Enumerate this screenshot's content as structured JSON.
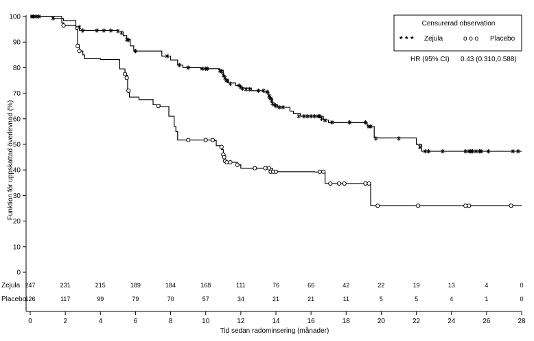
{
  "chart_data": {
    "type": "line",
    "subtype": "kaplan-meier",
    "xlabel": "Tid sedan radominsering (månader)",
    "ylabel": "Funktion för uppskattad överlevnad (%)",
    "xlim": [
      0,
      28
    ],
    "ylim": [
      0,
      100
    ],
    "x_ticks": [
      "0",
      "2",
      "4",
      "6",
      "8",
      "10",
      "12",
      "14",
      "16",
      "18",
      "20",
      "22",
      "24",
      "26",
      "28"
    ],
    "y_ticks": [
      "0",
      "10",
      "20",
      "30",
      "40",
      "50",
      "60",
      "70",
      "80",
      "90",
      "100"
    ],
    "legend": {
      "title": "Censurerad observation",
      "position": "top-right",
      "entries": [
        {
          "label": "Zejula",
          "symbol": "* * *"
        },
        {
          "label": "Placebo",
          "symbol": "o o o"
        }
      ]
    },
    "annotation": {
      "label": "HR (95% CI)",
      "value": "0.43 (0.310,0.588)"
    },
    "series": [
      {
        "name": "Zejula",
        "marker": "asterisk",
        "steps": [
          [
            0,
            100
          ],
          [
            1.3,
            99.2
          ],
          [
            1.9,
            98.4
          ],
          [
            2.6,
            96
          ],
          [
            2.8,
            94.5
          ],
          [
            5.0,
            94
          ],
          [
            5.3,
            92.5
          ],
          [
            5.5,
            91
          ],
          [
            5.7,
            88.5
          ],
          [
            5.9,
            86.5
          ],
          [
            7.5,
            84.5
          ],
          [
            8.0,
            83
          ],
          [
            8.4,
            81
          ],
          [
            8.7,
            80
          ],
          [
            9.7,
            79.6
          ],
          [
            10.8,
            79
          ],
          [
            11.0,
            77
          ],
          [
            11.1,
            75
          ],
          [
            11.3,
            74
          ],
          [
            11.7,
            73
          ],
          [
            12.0,
            72
          ],
          [
            12.6,
            71
          ],
          [
            13.3,
            70.5
          ],
          [
            13.6,
            68
          ],
          [
            13.8,
            65.5
          ],
          [
            14.1,
            64.5
          ],
          [
            14.8,
            63
          ],
          [
            15.0,
            62
          ],
          [
            15.4,
            61
          ],
          [
            16.7,
            59.5
          ],
          [
            17.0,
            58.5
          ],
          [
            19.2,
            57
          ],
          [
            19.6,
            52.5
          ],
          [
            22.0,
            50
          ],
          [
            22.3,
            47.3
          ],
          [
            28,
            47.3
          ]
        ],
        "censored": [
          [
            0.1,
            100
          ],
          [
            0.2,
            100
          ],
          [
            0.35,
            100
          ],
          [
            0.5,
            100
          ],
          [
            1.3,
            99.3
          ],
          [
            2.8,
            95.8
          ],
          [
            3.0,
            94.5
          ],
          [
            3.8,
            94.5
          ],
          [
            4.2,
            94.5
          ],
          [
            4.6,
            94.5
          ],
          [
            5.0,
            94.3
          ],
          [
            5.2,
            93.6
          ],
          [
            5.5,
            91
          ],
          [
            5.6,
            90.8
          ],
          [
            6.0,
            86.5
          ],
          [
            7.8,
            84.5
          ],
          [
            8.5,
            81
          ],
          [
            9.0,
            80
          ],
          [
            9.8,
            79.6
          ],
          [
            10.0,
            79.6
          ],
          [
            10.1,
            79.6
          ],
          [
            10.8,
            78.8
          ],
          [
            10.9,
            78.5
          ],
          [
            11.0,
            77
          ],
          [
            11.1,
            76
          ],
          [
            11.2,
            75
          ],
          [
            11.25,
            74.8
          ],
          [
            11.4,
            73.7
          ],
          [
            11.9,
            73
          ],
          [
            12.0,
            72.4
          ],
          [
            12.1,
            71.8
          ],
          [
            12.3,
            71.5
          ],
          [
            12.5,
            71.5
          ],
          [
            13.0,
            71
          ],
          [
            13.3,
            71
          ],
          [
            13.5,
            70.5
          ],
          [
            13.6,
            69
          ],
          [
            13.65,
            68.5
          ],
          [
            13.7,
            68
          ],
          [
            13.75,
            67
          ],
          [
            13.8,
            66
          ],
          [
            13.9,
            65.5
          ],
          [
            14.0,
            65
          ],
          [
            14.2,
            64.5
          ],
          [
            14.4,
            64.5
          ],
          [
            15.3,
            61
          ],
          [
            15.6,
            61
          ],
          [
            15.8,
            61
          ],
          [
            16.0,
            61
          ],
          [
            16.2,
            61
          ],
          [
            16.4,
            61
          ],
          [
            16.5,
            61
          ],
          [
            16.6,
            60
          ],
          [
            16.8,
            59.4
          ],
          [
            17.2,
            58.6
          ],
          [
            18.2,
            58.6
          ],
          [
            19.1,
            58.6
          ],
          [
            19.3,
            57
          ],
          [
            19.4,
            57
          ],
          [
            19.7,
            52.3
          ],
          [
            21.0,
            52.3
          ],
          [
            22.2,
            49
          ],
          [
            22.5,
            47.3
          ],
          [
            22.7,
            47.3
          ],
          [
            23.5,
            47.3
          ],
          [
            24.8,
            47.3
          ],
          [
            25.0,
            47.3
          ],
          [
            25.1,
            47.3
          ],
          [
            25.2,
            47.3
          ],
          [
            25.4,
            47.3
          ],
          [
            25.6,
            47.3
          ],
          [
            25.7,
            47.3
          ],
          [
            26.1,
            47.3
          ],
          [
            27.5,
            47.3
          ],
          [
            27.8,
            47.3
          ]
        ]
      },
      {
        "name": "Placebo",
        "marker": "circle",
        "steps": [
          [
            0,
            100
          ],
          [
            1.8,
            97.5
          ],
          [
            1.9,
            96.5
          ],
          [
            2.6,
            95
          ],
          [
            2.7,
            89
          ],
          [
            2.8,
            86.5
          ],
          [
            3.0,
            85
          ],
          [
            3.1,
            83.5
          ],
          [
            4.0,
            83.2
          ],
          [
            5.1,
            79.5
          ],
          [
            5.4,
            77
          ],
          [
            5.55,
            71
          ],
          [
            5.65,
            68.5
          ],
          [
            6.2,
            67.5
          ],
          [
            7.0,
            65.5
          ],
          [
            7.4,
            64.8
          ],
          [
            7.9,
            61
          ],
          [
            8.2,
            57
          ],
          [
            8.3,
            55
          ],
          [
            8.4,
            51.7
          ],
          [
            10.3,
            51.5
          ],
          [
            10.6,
            49.5
          ],
          [
            10.9,
            48
          ],
          [
            11.0,
            46
          ],
          [
            11.1,
            43
          ],
          [
            11.8,
            42
          ],
          [
            12.0,
            40.7
          ],
          [
            13.8,
            39.3
          ],
          [
            16.2,
            39.2
          ],
          [
            16.8,
            34.7
          ],
          [
            19.4,
            26
          ],
          [
            28,
            26
          ]
        ],
        "censored": [
          [
            1.9,
            96.5
          ],
          [
            2.7,
            88.5
          ],
          [
            2.8,
            86.5
          ],
          [
            5.4,
            77.5
          ],
          [
            5.5,
            76
          ],
          [
            5.6,
            71
          ],
          [
            7.3,
            65
          ],
          [
            9.0,
            51.7
          ],
          [
            10.0,
            51.7
          ],
          [
            10.4,
            51.7
          ],
          [
            10.9,
            49
          ],
          [
            11.0,
            46
          ],
          [
            11.05,
            45
          ],
          [
            11.1,
            43.5
          ],
          [
            11.2,
            43
          ],
          [
            11.4,
            43
          ],
          [
            11.8,
            42
          ],
          [
            12.8,
            40.7
          ],
          [
            13.4,
            40.7
          ],
          [
            13.6,
            40.7
          ],
          [
            13.7,
            39.3
          ],
          [
            13.85,
            39.3
          ],
          [
            14.0,
            39.3
          ],
          [
            16.5,
            39.3
          ],
          [
            16.7,
            39.3
          ],
          [
            17.1,
            34.7
          ],
          [
            17.6,
            34.7
          ],
          [
            17.9,
            34.7
          ],
          [
            19.1,
            34.7
          ],
          [
            19.3,
            34.7
          ],
          [
            19.8,
            26
          ],
          [
            22.1,
            26
          ],
          [
            24.8,
            26
          ],
          [
            25.0,
            26
          ],
          [
            27.4,
            26
          ]
        ]
      }
    ],
    "at_risk": {
      "times": [
        0,
        2,
        4,
        6,
        8,
        10,
        12,
        14,
        16,
        18,
        20,
        22,
        24,
        26,
        28
      ],
      "rows": [
        {
          "label": "Zejula",
          "values": [
            "247",
            "231",
            "215",
            "189",
            "184",
            "168",
            "111",
            "76",
            "66",
            "42",
            "22",
            "19",
            "13",
            "4",
            "0"
          ]
        },
        {
          "label": "Placebo",
          "values": [
            "126",
            "117",
            "99",
            "79",
            "70",
            "57",
            "34",
            "21",
            "21",
            "11",
            "5",
            "5",
            "4",
            "1",
            "0"
          ]
        }
      ]
    }
  }
}
